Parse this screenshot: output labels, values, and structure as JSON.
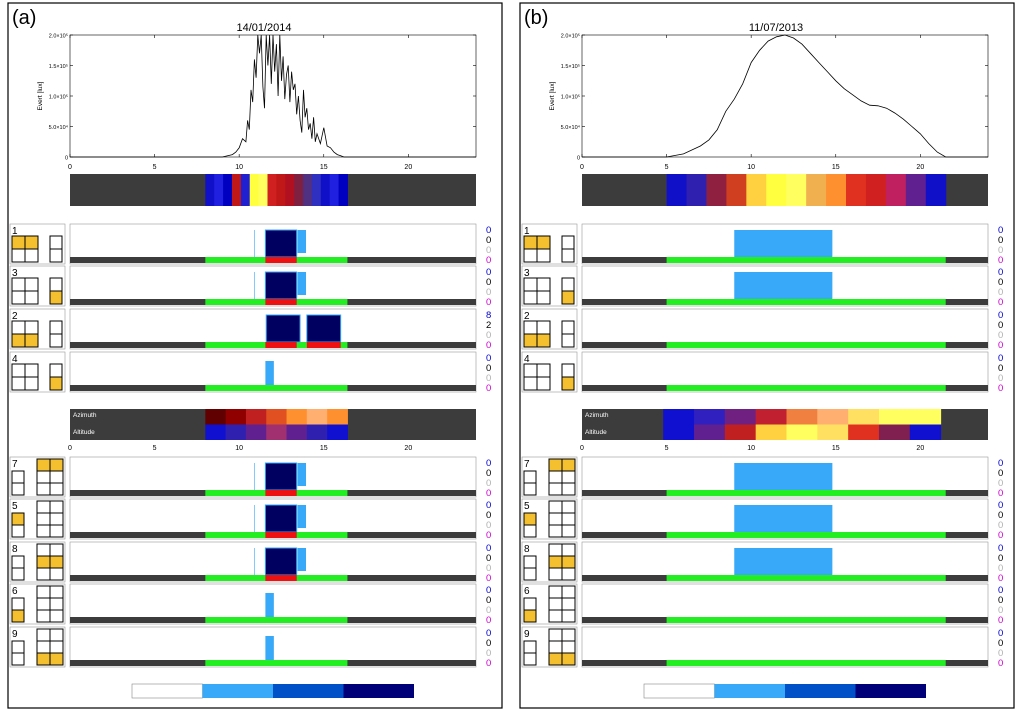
{
  "panels": [
    {
      "label": "(a)",
      "date": "14/01/2014",
      "chart_data": {
        "type": "line",
        "title": "14/01/2014",
        "ylabel": "Evert [lux]",
        "xlim": [
          0,
          24
        ],
        "ylim": [
          0,
          200000
        ],
        "xticks": [
          "0",
          "5",
          "10",
          "15",
          "20"
        ],
        "yticks": [
          "0",
          "5.0×10⁴",
          "1.0×10⁵",
          "1.5×10⁵",
          "2.0×10⁵"
        ],
        "series": [
          {
            "x": [
              0,
              9.0,
              9.6,
              9.8,
              10.0,
              10.2,
              10.4,
              10.5,
              10.6,
              10.7,
              10.8,
              10.9,
              11.0,
              11.1,
              11.2,
              11.3,
              11.4,
              11.5,
              11.6,
              11.7,
              11.8,
              11.9,
              12.0,
              12.1,
              12.2,
              12.3,
              12.4,
              12.5,
              12.6,
              12.7,
              12.8,
              12.9,
              13.0,
              13.1,
              13.2,
              13.3,
              13.4,
              13.5,
              13.6,
              13.7,
              13.8,
              13.9,
              14.0,
              14.1,
              14.2,
              14.3,
              14.4,
              14.5,
              14.6,
              14.8,
              15.0,
              15.2,
              15.4,
              15.6,
              15.8,
              16.0,
              16.2,
              24
            ],
            "y": [
              0,
              0,
              4000,
              8000,
              15000,
              30000,
              25000,
              60000,
              45000,
              110000,
              90000,
              160000,
              130000,
              200000,
              170000,
              200000,
              115000,
              80000,
              200000,
              150000,
              200000,
              120000,
              200000,
              140000,
              185000,
              100000,
              200000,
              125000,
              165000,
              95000,
              135000,
              150000,
              90000,
              140000,
              110000,
              120000,
              70000,
              100000,
              60000,
              40000,
              110000,
              65000,
              80000,
              45000,
              55000,
              30000,
              65000,
              25000,
              38000,
              22000,
              48000,
              18000,
              15000,
              8000,
              4000,
              2000,
              0,
              0
            ]
          }
        ]
      },
      "strip_colors": [
        "#1010c8",
        "#2020e0",
        "#0000c0",
        "#c01818",
        "#2020d0",
        "#ffff40",
        "#ffff60",
        "#d02020",
        "#c01818",
        "#b01020",
        "#802040",
        "#503080",
        "#3030c0",
        "#1010c8",
        "#2020e0",
        "#0000c0"
      ],
      "strip_range": [
        8.0,
        16.4
      ],
      "rows": [
        {
          "num": "1",
          "vals": [
            "0",
            "0",
            "0",
            "0"
          ],
          "cells": [
            [
              0,
              0
            ],
            [
              0,
              1
            ]
          ],
          "side": [],
          "layout": "A",
          "type": "dense",
          "red": true
        },
        {
          "num": "3",
          "vals": [
            "0",
            "0",
            "0",
            "0"
          ],
          "cells": [],
          "side": [
            1
          ],
          "layout": "A",
          "type": "dense",
          "red": true
        },
        {
          "num": "2",
          "vals": [
            "8",
            "2",
            "0",
            "0"
          ],
          "cells": [
            [
              1,
              0
            ],
            [
              1,
              1
            ]
          ],
          "side": [],
          "layout": "A",
          "type": "double",
          "red": true
        },
        {
          "num": "4",
          "vals": [
            "0",
            "0",
            "0",
            "0"
          ],
          "cells": [],
          "side": [
            1
          ],
          "layout": "A",
          "type": "small",
          "red": false
        },
        {
          "num": "7",
          "vals": [
            "0",
            "0",
            "0",
            "0"
          ],
          "cells": [
            [
              0,
              0
            ],
            [
              0,
              1
            ]
          ],
          "side": [],
          "layout": "B",
          "type": "dense",
          "red": true
        },
        {
          "num": "5",
          "vals": [
            "0",
            "0",
            "0",
            "0"
          ],
          "cells": [],
          "side": [
            0
          ],
          "layout": "B",
          "type": "dense",
          "red": true
        },
        {
          "num": "8",
          "vals": [
            "0",
            "0",
            "0",
            "0"
          ],
          "cells": [
            [
              1,
              0
            ],
            [
              1,
              1
            ]
          ],
          "side": [],
          "layout": "B",
          "type": "dense",
          "red": true
        },
        {
          "num": "6",
          "vals": [
            "0",
            "0",
            "0",
            "0"
          ],
          "cells": [],
          "side": [
            1
          ],
          "layout": "B",
          "type": "small",
          "red": false
        },
        {
          "num": "9",
          "vals": [
            "0",
            "0",
            "0",
            "0"
          ],
          "cells": [
            [
              2,
              0
            ],
            [
              2,
              1
            ]
          ],
          "side": [],
          "layout": "B",
          "type": "small",
          "red": false
        }
      ],
      "azimuth_label": "Azimuth",
      "altitude_label": "Altitude",
      "azalt_range": [
        8.0,
        16.4
      ],
      "azimuth_colors": [
        "#600000",
        "#900000",
        "#c02020",
        "#e05020",
        "#ff9030",
        "#ffb070",
        "#ff9030"
      ],
      "altitude_colors": [
        "#1010d0",
        "#3020b0",
        "#602090",
        "#a03070",
        "#602090",
        "#3020b0",
        "#1010d0"
      ],
      "azalt_ticks": [
        "0",
        "5",
        "10",
        "15",
        "20"
      ],
      "green_range": [
        8.0,
        16.4
      ]
    },
    {
      "label": "(b)",
      "date": "11/07/2013",
      "chart_data": {
        "type": "line",
        "title": "11/07/2013",
        "ylabel": "Evert [lux]",
        "xlim": [
          0,
          24
        ],
        "ylim": [
          0,
          200000
        ],
        "xticks": [
          "0",
          "5",
          "10",
          "15",
          "20"
        ],
        "yticks": [
          "0",
          "5.0×10⁴",
          "1.0×10⁵",
          "1.5×10⁵",
          "2.0×10⁵"
        ],
        "series": [
          {
            "x": [
              0,
              5.0,
              6.0,
              7.0,
              7.5,
              8.0,
              8.5,
              9.0,
              9.5,
              10.0,
              10.5,
              11.0,
              11.5,
              12.0,
              12.5,
              13.0,
              13.5,
              14.0,
              14.5,
              15.0,
              15.5,
              16.0,
              16.5,
              17.0,
              17.5,
              18.0,
              18.5,
              19.0,
              19.5,
              20.0,
              20.5,
              21.0,
              21.5,
              24
            ],
            "y": [
              0,
              0,
              5000,
              18000,
              28000,
              45000,
              75000,
              95000,
              120000,
              155000,
              175000,
              190000,
              197000,
              200000,
              195000,
              185000,
              170000,
              155000,
              140000,
              125000,
              112000,
              102000,
              92000,
              85000,
              84000,
              80000,
              72000,
              62000,
              50000,
              38000,
              22000,
              8000,
              0,
              0
            ]
          }
        ]
      },
      "strip_colors": [
        "#1010c8",
        "#3020b0",
        "#902040",
        "#d04020",
        "#ffd040",
        "#ffff40",
        "#ffff60",
        "#f0b050",
        "#ff9030",
        "#e03020",
        "#d02020",
        "#c02060",
        "#602090",
        "#1010c8"
      ],
      "strip_range": [
        5.0,
        21.5
      ],
      "rows": [
        {
          "num": "1",
          "vals": [
            "0",
            "0",
            "0",
            "0"
          ],
          "cells": [
            [
              0,
              0
            ],
            [
              0,
              1
            ]
          ],
          "side": [],
          "layout": "A",
          "type": "block"
        },
        {
          "num": "3",
          "vals": [
            "0",
            "0",
            "0",
            "0"
          ],
          "cells": [],
          "side": [
            1
          ],
          "layout": "A",
          "type": "block"
        },
        {
          "num": "2",
          "vals": [
            "0",
            "0",
            "0",
            "0"
          ],
          "cells": [
            [
              1,
              0
            ],
            [
              1,
              1
            ]
          ],
          "side": [],
          "layout": "A",
          "type": "none"
        },
        {
          "num": "4",
          "vals": [
            "0",
            "0",
            "0",
            "0"
          ],
          "cells": [],
          "side": [
            1
          ],
          "layout": "A",
          "type": "none"
        },
        {
          "num": "7",
          "vals": [
            "0",
            "0",
            "0",
            "0"
          ],
          "cells": [
            [
              0,
              0
            ],
            [
              0,
              1
            ]
          ],
          "side": [],
          "layout": "B",
          "type": "block"
        },
        {
          "num": "5",
          "vals": [
            "0",
            "0",
            "0",
            "0"
          ],
          "cells": [],
          "side": [
            0
          ],
          "layout": "B",
          "type": "block"
        },
        {
          "num": "8",
          "vals": [
            "0",
            "0",
            "0",
            "0"
          ],
          "cells": [
            [
              1,
              0
            ],
            [
              1,
              1
            ]
          ],
          "side": [],
          "layout": "B",
          "type": "block"
        },
        {
          "num": "6",
          "vals": [
            "0",
            "0",
            "0",
            "0"
          ],
          "cells": [],
          "side": [
            1
          ],
          "layout": "B",
          "type": "none"
        },
        {
          "num": "9",
          "vals": [
            "0",
            "0",
            "0",
            "0"
          ],
          "cells": [
            [
              2,
              0
            ],
            [
              2,
              1
            ]
          ],
          "side": [],
          "layout": "B",
          "type": "none"
        }
      ],
      "azimuth_label": "Azimuth",
      "altitude_label": "Altitude",
      "azalt_range": [
        4.8,
        21.2
      ],
      "azimuth_colors": [
        "#1010d0",
        "#3020c0",
        "#702080",
        "#c02030",
        "#f08040",
        "#ffb070",
        "#ffe060",
        "#ffff60",
        "#ffff60"
      ],
      "altitude_colors": [
        "#1010d0",
        "#602090",
        "#c02020",
        "#ffd040",
        "#ffff60",
        "#ffe060",
        "#e03020",
        "#802050",
        "#1010d0"
      ],
      "azalt_ticks": [
        "0",
        "5",
        "10",
        "15",
        "20"
      ],
      "green_range": [
        5.0,
        21.5
      ]
    }
  ],
  "legend_colors": [
    "#ffffff",
    "#38a8f8",
    "#0050c8",
    "#000078"
  ],
  "colors": {
    "panel_gray": "#3c3c3c",
    "green": "#22ee22",
    "red": "#ee1111",
    "lightblue": "#38a8f8",
    "navy": "#000060",
    "gold": "#f5c030",
    "blue_digit": "#0000cc",
    "magenta_digit": "#cc00cc",
    "gray_digit": "#b0b0b0"
  }
}
